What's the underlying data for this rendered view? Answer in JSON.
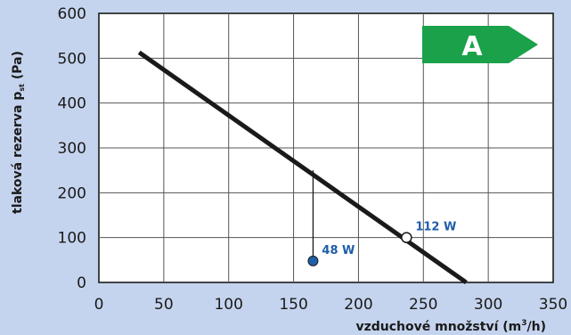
{
  "chart_data": {
    "type": "line",
    "x_axis": {
      "label_main": "vzduchové množství (m",
      "label_sup": "3",
      "label_end": "/h)",
      "range": [
        0,
        350
      ],
      "ticks": [
        "0",
        "50",
        "100",
        "150",
        "200",
        "250",
        "300",
        "350"
      ]
    },
    "y_axis": {
      "label_main": "tlaková rezerva p",
      "label_sub": "st",
      "label_end": " (Pa)",
      "range": [
        0,
        600
      ],
      "ticks": [
        "0",
        "100",
        "200",
        "300",
        "400",
        "500",
        "600"
      ]
    },
    "grid": true,
    "series": [
      {
        "x": [
          31,
          283
        ],
        "y": [
          513,
          0
        ],
        "color": "#1a1a1a"
      }
    ],
    "points": [
      {
        "x": 165,
        "y": 48,
        "label": "48 W",
        "style": "filled",
        "color": "#1f5ea8"
      },
      {
        "x": 237,
        "y": 100,
        "label": "112 W",
        "style": "hollow",
        "color": "#1f5ea8"
      }
    ],
    "drop_line": {
      "x": 165,
      "from_y": 48,
      "to_y": 250
    },
    "energy_badge": {
      "label": "A",
      "color": "#1aa14a",
      "position": "top-right"
    }
  }
}
